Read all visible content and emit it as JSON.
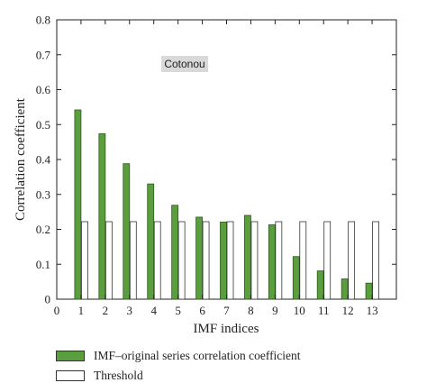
{
  "chart_data": {
    "type": "bar",
    "x": [
      1,
      2,
      3,
      4,
      5,
      6,
      7,
      8,
      9,
      10,
      11,
      12,
      13
    ],
    "series": [
      {
        "name": "IMF–original series correlation coefficient",
        "color": "#5a9e3e",
        "values": [
          0.542,
          0.474,
          0.388,
          0.33,
          0.269,
          0.235,
          0.221,
          0.24,
          0.213,
          0.122,
          0.081,
          0.058,
          0.046
        ]
      },
      {
        "name": "Threshold",
        "color": "#ffffff",
        "values": [
          0.222,
          0.222,
          0.222,
          0.222,
          0.222,
          0.222,
          0.222,
          0.222,
          0.222,
          0.222,
          0.222,
          0.222,
          0.222
        ]
      }
    ],
    "xlabel": "IMF indices",
    "ylabel": "Correlation coefficient",
    "xlim": [
      0,
      14
    ],
    "ylim": [
      0,
      0.8
    ],
    "xticks": [
      "0",
      "1",
      "2",
      "3",
      "4",
      "5",
      "6",
      "7",
      "8",
      "9",
      "10",
      "11",
      "12",
      "13"
    ],
    "yticks": [
      "0",
      "0.1",
      "0.2",
      "0.3",
      "0.4",
      "0.5",
      "0.6",
      "0.7",
      "0.8"
    ],
    "annotation": "Cotonou",
    "legend_position": "bottom",
    "grid": false
  }
}
